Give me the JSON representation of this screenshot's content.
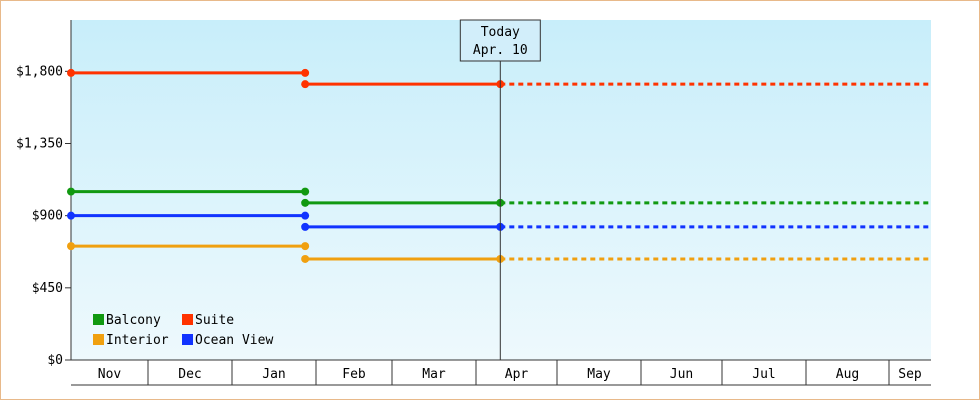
{
  "chart_data": {
    "type": "line",
    "step": true,
    "x_categories": [
      "Nov",
      "Dec",
      "Jan",
      "Feb",
      "Mar",
      "Apr",
      "May",
      "Jun",
      "Jul",
      "Aug",
      "Sep"
    ],
    "y_ticks": [
      "$0",
      "$450",
      "$900",
      "$1,350",
      "$1,800"
    ],
    "ylim": [
      0,
      2120
    ],
    "today": {
      "title": "Today",
      "date": "Apr. 10"
    },
    "legend": {
      "position": "bottom-left"
    },
    "grid": false,
    "series": [
      {
        "name": "Balcony",
        "color": "#119911",
        "points": [
          [
            "Nov 1",
            1050
          ],
          [
            "Jan 28",
            1050
          ],
          [
            "Jan 28",
            980
          ],
          [
            "Apr 10",
            980
          ]
        ],
        "projected_to": "Sep 30"
      },
      {
        "name": "Suite",
        "color": "#ff3300",
        "points": [
          [
            "Nov 1",
            1790
          ],
          [
            "Jan 28",
            1790
          ],
          [
            "Jan 28",
            1720
          ],
          [
            "Apr 10",
            1720
          ]
        ],
        "projected_to": "Sep 30"
      },
      {
        "name": "Interior",
        "color": "#f0a010",
        "points": [
          [
            "Nov 1",
            710
          ],
          [
            "Jan 28",
            710
          ],
          [
            "Jan 28",
            630
          ],
          [
            "Apr 10",
            630
          ]
        ],
        "projected_to": "Sep 30"
      },
      {
        "name": "Ocean View",
        "color": "#1133ff",
        "points": [
          [
            "Nov 1",
            900
          ],
          [
            "Jan 28",
            900
          ],
          [
            "Jan 28",
            830
          ],
          [
            "Apr 10",
            830
          ]
        ],
        "projected_to": "Sep 30"
      }
    ]
  }
}
